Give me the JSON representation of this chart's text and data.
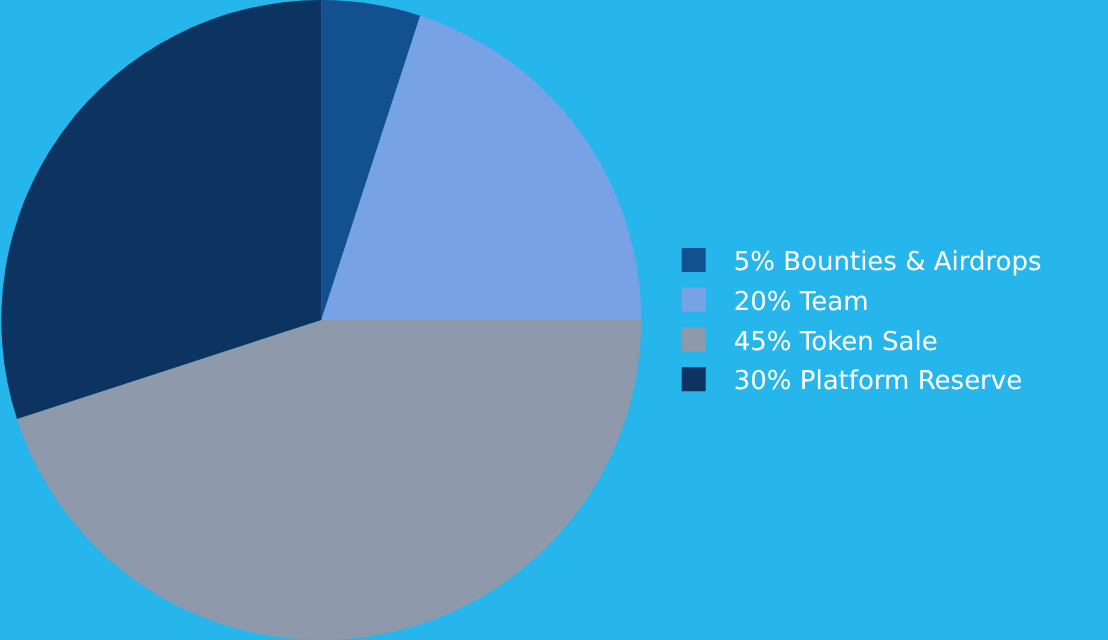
{
  "chart_data": {
    "type": "pie",
    "categories": [
      "5% Bounties & Airdrops",
      "20% Team",
      "45% Token Sale",
      "30% Platform Reserve"
    ],
    "values": [
      5,
      20,
      45,
      30
    ],
    "colors": [
      "#12508f",
      "#77a2e6",
      "#8e9aab",
      "#0d3461"
    ],
    "legend": "right"
  }
}
